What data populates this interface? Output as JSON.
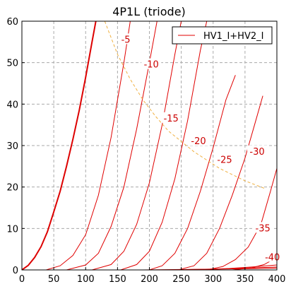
{
  "chart_data": {
    "type": "line",
    "title": "4P1L (triode)",
    "xlabel": "",
    "ylabel": "",
    "xlim": [
      0,
      400
    ],
    "ylim": [
      0,
      60
    ],
    "xticks": [
      0,
      50,
      100,
      150,
      200,
      250,
      300,
      350,
      400
    ],
    "yticks": [
      0,
      10,
      20,
      30,
      40,
      50,
      60
    ],
    "grid": true,
    "legend_position": "top-right",
    "legend": [
      "HV1_I+HV2_I"
    ],
    "colors": {
      "curves": "#e00000",
      "bold_curve": "#dd0000",
      "dissipation": "#f0b040",
      "grid": "#aaaaaa",
      "label_text": "#cc0000"
    },
    "series": [
      {
        "label": "0",
        "bold": true,
        "x": [
          0,
          10,
          20,
          30,
          40,
          50,
          60,
          70,
          80,
          90,
          100,
          110,
          116
        ],
        "y": [
          0,
          1.1,
          3.0,
          5.6,
          9.2,
          14.0,
          19.0,
          25.0,
          31.5,
          38.5,
          46.5,
          55.0,
          60.0
        ]
      },
      {
        "label": "-5",
        "bold": false,
        "x": [
          38,
          60,
          80,
          100,
          120,
          140,
          160,
          170
        ],
        "y": [
          0,
          1.0,
          3.5,
          8.5,
          18.0,
          32.0,
          50.0,
          60.0
        ]
      },
      {
        "label": "-10",
        "bold": false,
        "x": [
          70,
          100,
          120,
          140,
          160,
          180,
          200,
          212
        ],
        "y": [
          0,
          1.2,
          4.0,
          10.5,
          20.0,
          34.0,
          50.0,
          60.0
        ]
      },
      {
        "label": "-15",
        "bold": false,
        "x": [
          110,
          140,
          160,
          180,
          200,
          220,
          240,
          250
        ],
        "y": [
          0,
          1.3,
          4.5,
          11.0,
          21.0,
          35.0,
          52.0,
          60.0
        ]
      },
      {
        "label": "-20",
        "bold": false,
        "x": [
          155,
          180,
          200,
          220,
          240,
          260,
          280,
          290
        ],
        "y": [
          0,
          1.3,
          4.5,
          11.5,
          22.0,
          36.0,
          53.0,
          60.0
        ]
      },
      {
        "label": "-25",
        "bold": false,
        "x": [
          200,
          220,
          240,
          260,
          280,
          300,
          320,
          335
        ],
        "y": [
          0,
          1.0,
          4.0,
          10.0,
          19.0,
          29.5,
          41.0,
          47.0
        ]
      },
      {
        "label": "-30",
        "bold": false,
        "x": [
          245,
          270,
          290,
          310,
          330,
          350,
          365,
          378
        ],
        "y": [
          0,
          1.0,
          4.0,
          10.0,
          18.0,
          27.0,
          35.0,
          42.0
        ]
      },
      {
        "label": "-35",
        "bold": false,
        "x": [
          290,
          315,
          335,
          355,
          375,
          390,
          400
        ],
        "y": [
          0,
          0.8,
          2.5,
          5.5,
          11.0,
          19.0,
          24.5
        ]
      },
      {
        "label": "-40",
        "bold": false,
        "x": [
          330,
          360,
          380,
          400
        ],
        "y": [
          0,
          0.5,
          1.3,
          3.0
        ]
      },
      {
        "label": "",
        "bold": false,
        "x": [
          270,
          320,
          360,
          400
        ],
        "y": [
          0,
          0.3,
          0.7,
          1.2
        ]
      },
      {
        "label": "",
        "bold": false,
        "x": [
          230,
          300,
          360,
          400
        ],
        "y": [
          0,
          0.2,
          0.5,
          0.7
        ]
      },
      {
        "label": "",
        "bold": false,
        "x": [
          190,
          280,
          350,
          400
        ],
        "y": [
          0,
          0.15,
          0.3,
          0.45
        ]
      }
    ],
    "dissipation_curve": {
      "x": [
        130,
        150,
        170,
        190,
        210,
        230,
        250,
        270,
        290,
        310,
        330,
        350,
        370,
        380
      ],
      "y": [
        60,
        52,
        46,
        41,
        37,
        33.5,
        31.0,
        28.5,
        26.5,
        24.5,
        23.0,
        21.5,
        20.3,
        19.7
      ]
    },
    "annotations": [
      {
        "text": "-5",
        "x": 163,
        "y": 55.5
      },
      {
        "text": "-10",
        "x": 203,
        "y": 49.5
      },
      {
        "text": "-15",
        "x": 234,
        "y": 36.5
      },
      {
        "text": "-20",
        "x": 277,
        "y": 31.0
      },
      {
        "text": "-25",
        "x": 318,
        "y": 26.5
      },
      {
        "text": "-30",
        "x": 369,
        "y": 28.5
      },
      {
        "text": "-35",
        "x": 378,
        "y": 10.0
      },
      {
        "text": "-40",
        "x": 393,
        "y": 3.0
      }
    ]
  }
}
